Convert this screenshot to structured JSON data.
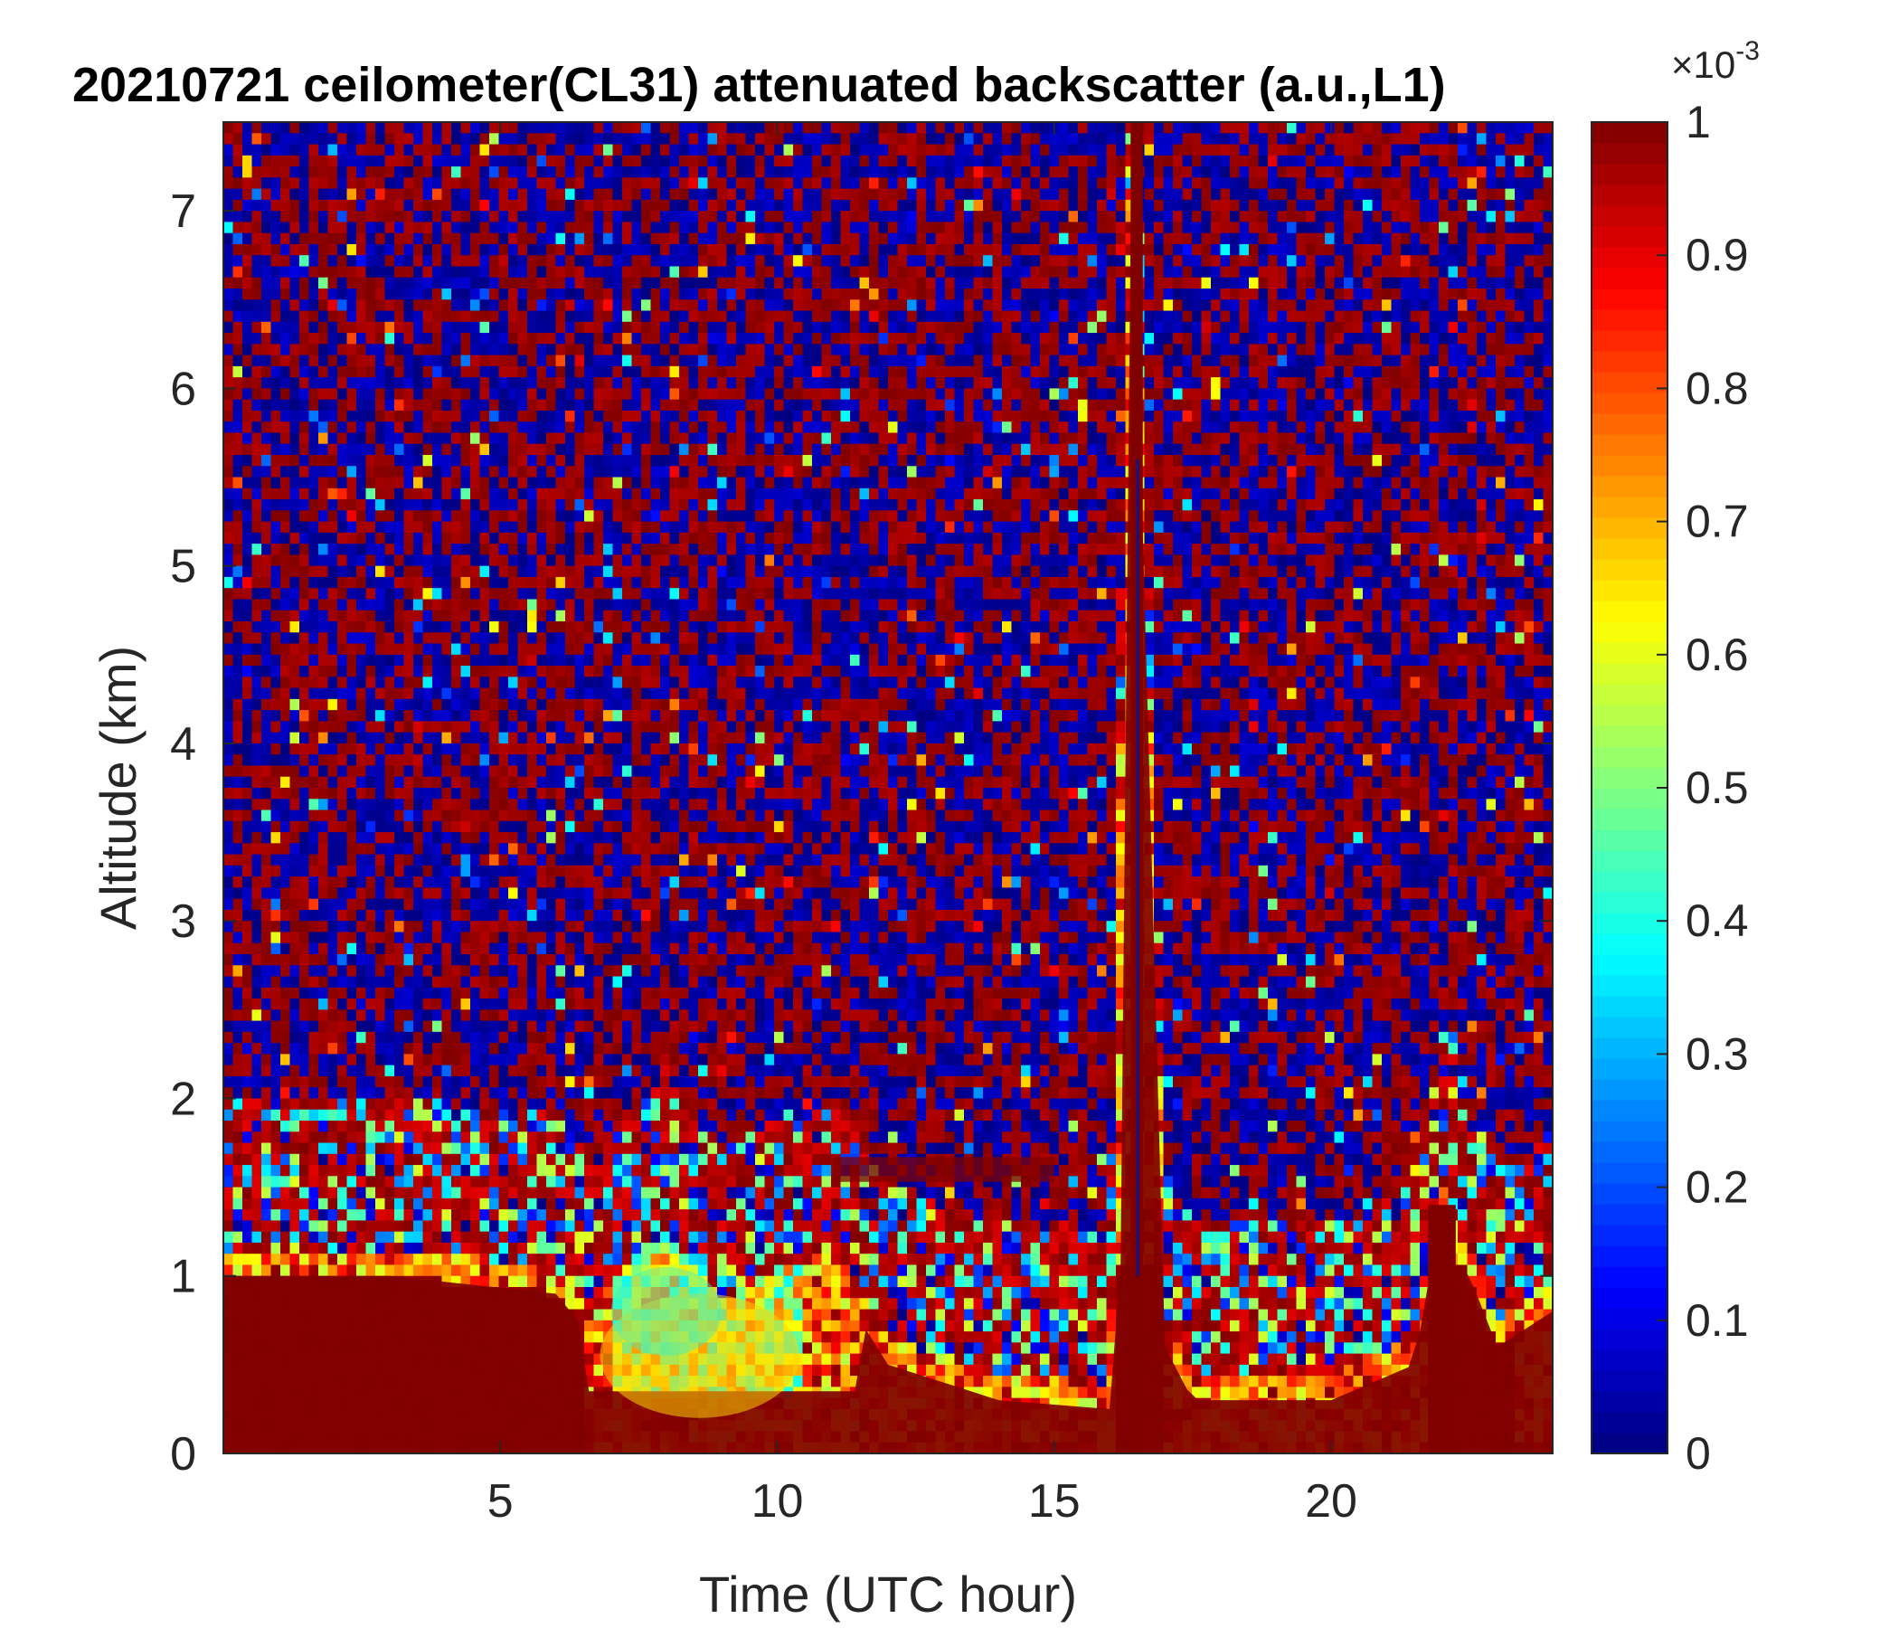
{
  "chart_data": {
    "type": "heatmap",
    "title": "20210721 ceilometer(CL31) attenuated backscatter (a.u.,L1)",
    "xlabel": "Time (UTC hour)",
    "ylabel": "Altitude (km)",
    "xlim": [
      0,
      24
    ],
    "ylim": [
      0,
      7.5
    ],
    "x_ticks": [
      5,
      10,
      15,
      20
    ],
    "y_ticks": [
      0,
      1,
      2,
      3,
      4,
      5,
      6,
      7
    ],
    "colorbar": {
      "colormap": "jet",
      "range": [
        0,
        1
      ],
      "ticks": [
        0,
        0.1,
        0.2,
        0.3,
        0.4,
        0.5,
        0.6,
        0.7,
        0.8,
        0.9,
        1
      ],
      "exponent_label": "×10",
      "exponent": "-3"
    },
    "boundary_layer_top_km": [
      [
        0,
        1.0
      ],
      [
        3,
        1.0
      ],
      [
        6,
        0.9
      ],
      [
        6.8,
        0.6
      ],
      [
        7,
        0.85
      ],
      [
        8,
        1.1
      ],
      [
        9,
        0.7
      ],
      [
        10,
        0.9
      ],
      [
        11,
        1.0
      ],
      [
        12,
        0.5
      ],
      [
        14,
        0.3
      ],
      [
        16,
        0.25
      ],
      [
        16.4,
        7.5
      ],
      [
        17,
        0.6
      ],
      [
        17.5,
        0.3
      ],
      [
        20,
        0.3
      ],
      [
        21.5,
        0.5
      ],
      [
        22,
        1.4
      ],
      [
        23,
        0.6
      ],
      [
        24,
        0.8
      ]
    ],
    "features": [
      {
        "name": "vertical precipitation streak",
        "x": 16.5,
        "y_top": 7.5
      },
      {
        "name": "elevated aerosol layer",
        "x_start": 11,
        "x_end": 15,
        "altitude": 1.6
      },
      {
        "name": "convective plume",
        "x": 22,
        "y_top": 1.4
      }
    ]
  }
}
